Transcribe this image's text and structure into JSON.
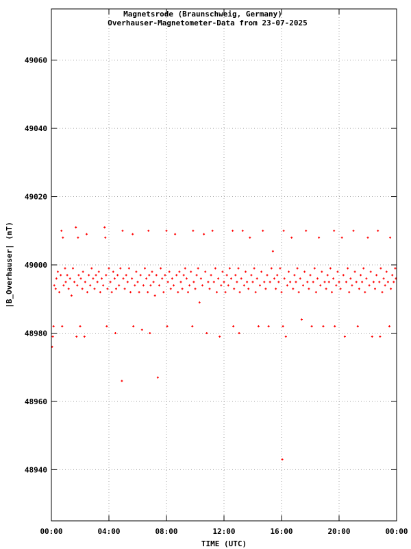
{
  "chart_data": {
    "type": "scatter",
    "title": "Magnetsrode (Braunschweig, Germany)",
    "subtitle": "Overhauser-Magnetometer-Data from 23-07-2025",
    "xlabel": "TIME (UTC)",
    "ylabel": "|B_Overhauser| (nT)",
    "xlim": [
      0,
      24
    ],
    "ylim": [
      48925,
      49075
    ],
    "x_unit": "hours (UTC)",
    "x_ticks": [
      {
        "value": 0,
        "label": "00:00"
      },
      {
        "value": 4,
        "label": "04:00"
      },
      {
        "value": 8,
        "label": "08:00"
      },
      {
        "value": 12,
        "label": "12:00"
      },
      {
        "value": 16,
        "label": "16:00"
      },
      {
        "value": 20,
        "label": "20:00"
      },
      {
        "value": 24,
        "label": "00:00"
      }
    ],
    "y_ticks": [
      {
        "value": 48940,
        "label": "48940"
      },
      {
        "value": 48960,
        "label": "48960"
      },
      {
        "value": 48980,
        "label": "48980"
      },
      {
        "value": 49000,
        "label": "49000"
      },
      {
        "value": 49020,
        "label": "49020"
      },
      {
        "value": 49040,
        "label": "49040"
      },
      {
        "value": 49060,
        "label": "49060"
      }
    ],
    "grid": true,
    "series": [
      {
        "color": "#ff0000",
        "points": [
          [
            0.05,
            48976
          ],
          [
            0.1,
            48979
          ],
          [
            0.15,
            48982
          ],
          [
            0.2,
            48994
          ],
          [
            0.3,
            48993
          ],
          [
            0.35,
            48996
          ],
          [
            0.45,
            48998
          ],
          [
            0.55,
            48992
          ],
          [
            0.65,
            48997
          ],
          [
            0.7,
            49010
          ],
          [
            0.75,
            48982
          ],
          [
            0.8,
            49008
          ],
          [
            0.85,
            48994
          ],
          [
            0.95,
            48999
          ],
          [
            1.0,
            48995
          ],
          [
            1.1,
            48997
          ],
          [
            1.2,
            48993
          ],
          [
            1.3,
            48996
          ],
          [
            1.4,
            48991
          ],
          [
            1.5,
            48999
          ],
          [
            1.6,
            48995
          ],
          [
            1.7,
            49011
          ],
          [
            1.75,
            48979
          ],
          [
            1.8,
            48994
          ],
          [
            1.85,
            49008
          ],
          [
            1.9,
            48997
          ],
          [
            2.0,
            48982
          ],
          [
            2.05,
            48996
          ],
          [
            2.15,
            48993
          ],
          [
            2.2,
            48998
          ],
          [
            2.3,
            48979
          ],
          [
            2.35,
            48995
          ],
          [
            2.45,
            49009
          ],
          [
            2.5,
            48992
          ],
          [
            2.6,
            48997
          ],
          [
            2.7,
            48994
          ],
          [
            2.8,
            48999
          ],
          [
            2.9,
            48996
          ],
          [
            3.0,
            48993
          ],
          [
            3.1,
            48997
          ],
          [
            3.2,
            48995
          ],
          [
            3.3,
            48998
          ],
          [
            3.4,
            48992
          ],
          [
            3.5,
            48996
          ],
          [
            3.6,
            48994
          ],
          [
            3.7,
            49011
          ],
          [
            3.75,
            49008
          ],
          [
            3.8,
            48997
          ],
          [
            3.85,
            48982
          ],
          [
            3.9,
            48993
          ],
          [
            4.0,
            48999
          ],
          [
            4.1,
            48995
          ],
          [
            4.2,
            48992
          ],
          [
            4.3,
            48998
          ],
          [
            4.4,
            48996
          ],
          [
            4.45,
            48980
          ],
          [
            4.5,
            48993
          ],
          [
            4.6,
            48997
          ],
          [
            4.7,
            48994
          ],
          [
            4.8,
            48999
          ],
          [
            4.9,
            48966
          ],
          [
            4.95,
            49010
          ],
          [
            5.0,
            48996
          ],
          [
            5.1,
            48993
          ],
          [
            5.2,
            48997
          ],
          [
            5.3,
            48995
          ],
          [
            5.4,
            48999
          ],
          [
            5.5,
            48992
          ],
          [
            5.6,
            48996
          ],
          [
            5.65,
            49009
          ],
          [
            5.7,
            48982
          ],
          [
            5.8,
            48994
          ],
          [
            5.9,
            48998
          ],
          [
            6.0,
            48995
          ],
          [
            6.1,
            48992
          ],
          [
            6.2,
            48997
          ],
          [
            6.3,
            48981
          ],
          [
            6.4,
            48994
          ],
          [
            6.5,
            48999
          ],
          [
            6.6,
            48996
          ],
          [
            6.7,
            48992
          ],
          [
            6.75,
            49010
          ],
          [
            6.8,
            48997
          ],
          [
            6.85,
            48980
          ],
          [
            6.9,
            48994
          ],
          [
            7.0,
            48998
          ],
          [
            7.1,
            48995
          ],
          [
            7.2,
            48991
          ],
          [
            7.3,
            48997
          ],
          [
            7.4,
            48967
          ],
          [
            7.5,
            48994
          ],
          [
            7.6,
            48999
          ],
          [
            7.7,
            48996
          ],
          [
            7.8,
            48992
          ],
          [
            7.9,
            48997
          ],
          [
            8.0,
            49010
          ],
          [
            8.05,
            48982
          ],
          [
            8.1,
            48995
          ],
          [
            8.2,
            48998
          ],
          [
            8.3,
            48993
          ],
          [
            8.4,
            48996
          ],
          [
            8.5,
            48994
          ],
          [
            8.6,
            49009
          ],
          [
            8.7,
            48997
          ],
          [
            8.8,
            48992
          ],
          [
            8.9,
            48998
          ],
          [
            9.0,
            48995
          ],
          [
            9.1,
            48993
          ],
          [
            9.2,
            48997
          ],
          [
            9.3,
            48999
          ],
          [
            9.4,
            48996
          ],
          [
            9.5,
            48992
          ],
          [
            9.6,
            48994
          ],
          [
            9.7,
            48998
          ],
          [
            9.8,
            48982
          ],
          [
            9.85,
            49010
          ],
          [
            9.9,
            48995
          ],
          [
            10.0,
            48993
          ],
          [
            10.1,
            48997
          ],
          [
            10.2,
            48999
          ],
          [
            10.3,
            48989
          ],
          [
            10.4,
            48996
          ],
          [
            10.5,
            48994
          ],
          [
            10.6,
            49009
          ],
          [
            10.7,
            48998
          ],
          [
            10.8,
            48980
          ],
          [
            10.9,
            48995
          ],
          [
            11.0,
            48993
          ],
          [
            11.1,
            48997
          ],
          [
            11.2,
            49010
          ],
          [
            11.3,
            48995
          ],
          [
            11.4,
            48999
          ],
          [
            11.5,
            48992
          ],
          [
            11.6,
            48996
          ],
          [
            11.7,
            48979
          ],
          [
            11.8,
            48994
          ],
          [
            11.9,
            48998
          ],
          [
            12.0,
            48995
          ],
          [
            12.1,
            48992
          ],
          [
            12.2,
            48997
          ],
          [
            12.3,
            48994
          ],
          [
            12.4,
            48999
          ],
          [
            12.5,
            48996
          ],
          [
            12.6,
            49010
          ],
          [
            12.65,
            48982
          ],
          [
            12.7,
            48993
          ],
          [
            12.8,
            48997
          ],
          [
            12.9,
            48995
          ],
          [
            13.0,
            48999
          ],
          [
            13.05,
            48980
          ],
          [
            13.1,
            48992
          ],
          [
            13.2,
            48996
          ],
          [
            13.3,
            49010
          ],
          [
            13.4,
            48994
          ],
          [
            13.5,
            48998
          ],
          [
            13.6,
            48995
          ],
          [
            13.7,
            48993
          ],
          [
            13.8,
            49008
          ],
          [
            13.9,
            48997
          ],
          [
            14.0,
            48995
          ],
          [
            14.1,
            48999
          ],
          [
            14.2,
            48992
          ],
          [
            14.3,
            48996
          ],
          [
            14.4,
            48982
          ],
          [
            14.5,
            48994
          ],
          [
            14.6,
            48998
          ],
          [
            14.7,
            49010
          ],
          [
            14.8,
            48995
          ],
          [
            14.9,
            48993
          ],
          [
            15.0,
            48997
          ],
          [
            15.1,
            48982
          ],
          [
            15.2,
            48995
          ],
          [
            15.3,
            48999
          ],
          [
            15.4,
            49004
          ],
          [
            15.5,
            48996
          ],
          [
            15.6,
            48993
          ],
          [
            15.7,
            48997
          ],
          [
            15.8,
            48995
          ],
          [
            15.9,
            48999
          ],
          [
            16.0,
            48992
          ],
          [
            16.05,
            48943
          ],
          [
            16.1,
            48982
          ],
          [
            16.15,
            49010
          ],
          [
            16.2,
            48996
          ],
          [
            16.3,
            48979
          ],
          [
            16.4,
            48994
          ],
          [
            16.5,
            48998
          ],
          [
            16.6,
            48995
          ],
          [
            16.7,
            49008
          ],
          [
            16.8,
            48993
          ],
          [
            16.9,
            48997
          ],
          [
            17.0,
            48995
          ],
          [
            17.1,
            48999
          ],
          [
            17.2,
            48992
          ],
          [
            17.3,
            48996
          ],
          [
            17.4,
            48984
          ],
          [
            17.5,
            48994
          ],
          [
            17.6,
            48998
          ],
          [
            17.7,
            49010
          ],
          [
            17.8,
            48995
          ],
          [
            17.9,
            48993
          ],
          [
            18.0,
            48997
          ],
          [
            18.1,
            48982
          ],
          [
            18.2,
            48995
          ],
          [
            18.3,
            48999
          ],
          [
            18.4,
            48992
          ],
          [
            18.5,
            48996
          ],
          [
            18.6,
            49008
          ],
          [
            18.7,
            48994
          ],
          [
            18.8,
            48998
          ],
          [
            18.9,
            48982
          ],
          [
            19.0,
            48995
          ],
          [
            19.1,
            48993
          ],
          [
            19.2,
            48997
          ],
          [
            19.3,
            48995
          ],
          [
            19.4,
            48999
          ],
          [
            19.5,
            48992
          ],
          [
            19.6,
            48996
          ],
          [
            19.65,
            49010
          ],
          [
            19.7,
            48982
          ],
          [
            19.8,
            48994
          ],
          [
            19.9,
            48998
          ],
          [
            20.0,
            48995
          ],
          [
            20.1,
            48993
          ],
          [
            20.2,
            49008
          ],
          [
            20.3,
            48997
          ],
          [
            20.4,
            48979
          ],
          [
            20.5,
            48995
          ],
          [
            20.6,
            48999
          ],
          [
            20.7,
            48992
          ],
          [
            20.8,
            48996
          ],
          [
            20.9,
            48994
          ],
          [
            21.0,
            49010
          ],
          [
            21.1,
            48998
          ],
          [
            21.2,
            48995
          ],
          [
            21.3,
            48982
          ],
          [
            21.4,
            48993
          ],
          [
            21.5,
            48997
          ],
          [
            21.6,
            48995
          ],
          [
            21.7,
            48999
          ],
          [
            21.8,
            48992
          ],
          [
            21.9,
            48996
          ],
          [
            22.0,
            49008
          ],
          [
            22.1,
            48994
          ],
          [
            22.2,
            48998
          ],
          [
            22.3,
            48979
          ],
          [
            22.4,
            48995
          ],
          [
            22.5,
            48993
          ],
          [
            22.6,
            48997
          ],
          [
            22.7,
            49010
          ],
          [
            22.8,
            48995
          ],
          [
            22.85,
            48979
          ],
          [
            22.9,
            48999
          ],
          [
            23.0,
            48992
          ],
          [
            23.1,
            48996
          ],
          [
            23.2,
            48994
          ],
          [
            23.3,
            48998
          ],
          [
            23.4,
            48995
          ],
          [
            23.5,
            48982
          ],
          [
            23.55,
            49008
          ],
          [
            23.6,
            48993
          ],
          [
            23.7,
            48997
          ],
          [
            23.8,
            48995
          ],
          [
            23.9,
            48999
          ],
          [
            23.95,
            48996
          ]
        ]
      }
    ]
  }
}
